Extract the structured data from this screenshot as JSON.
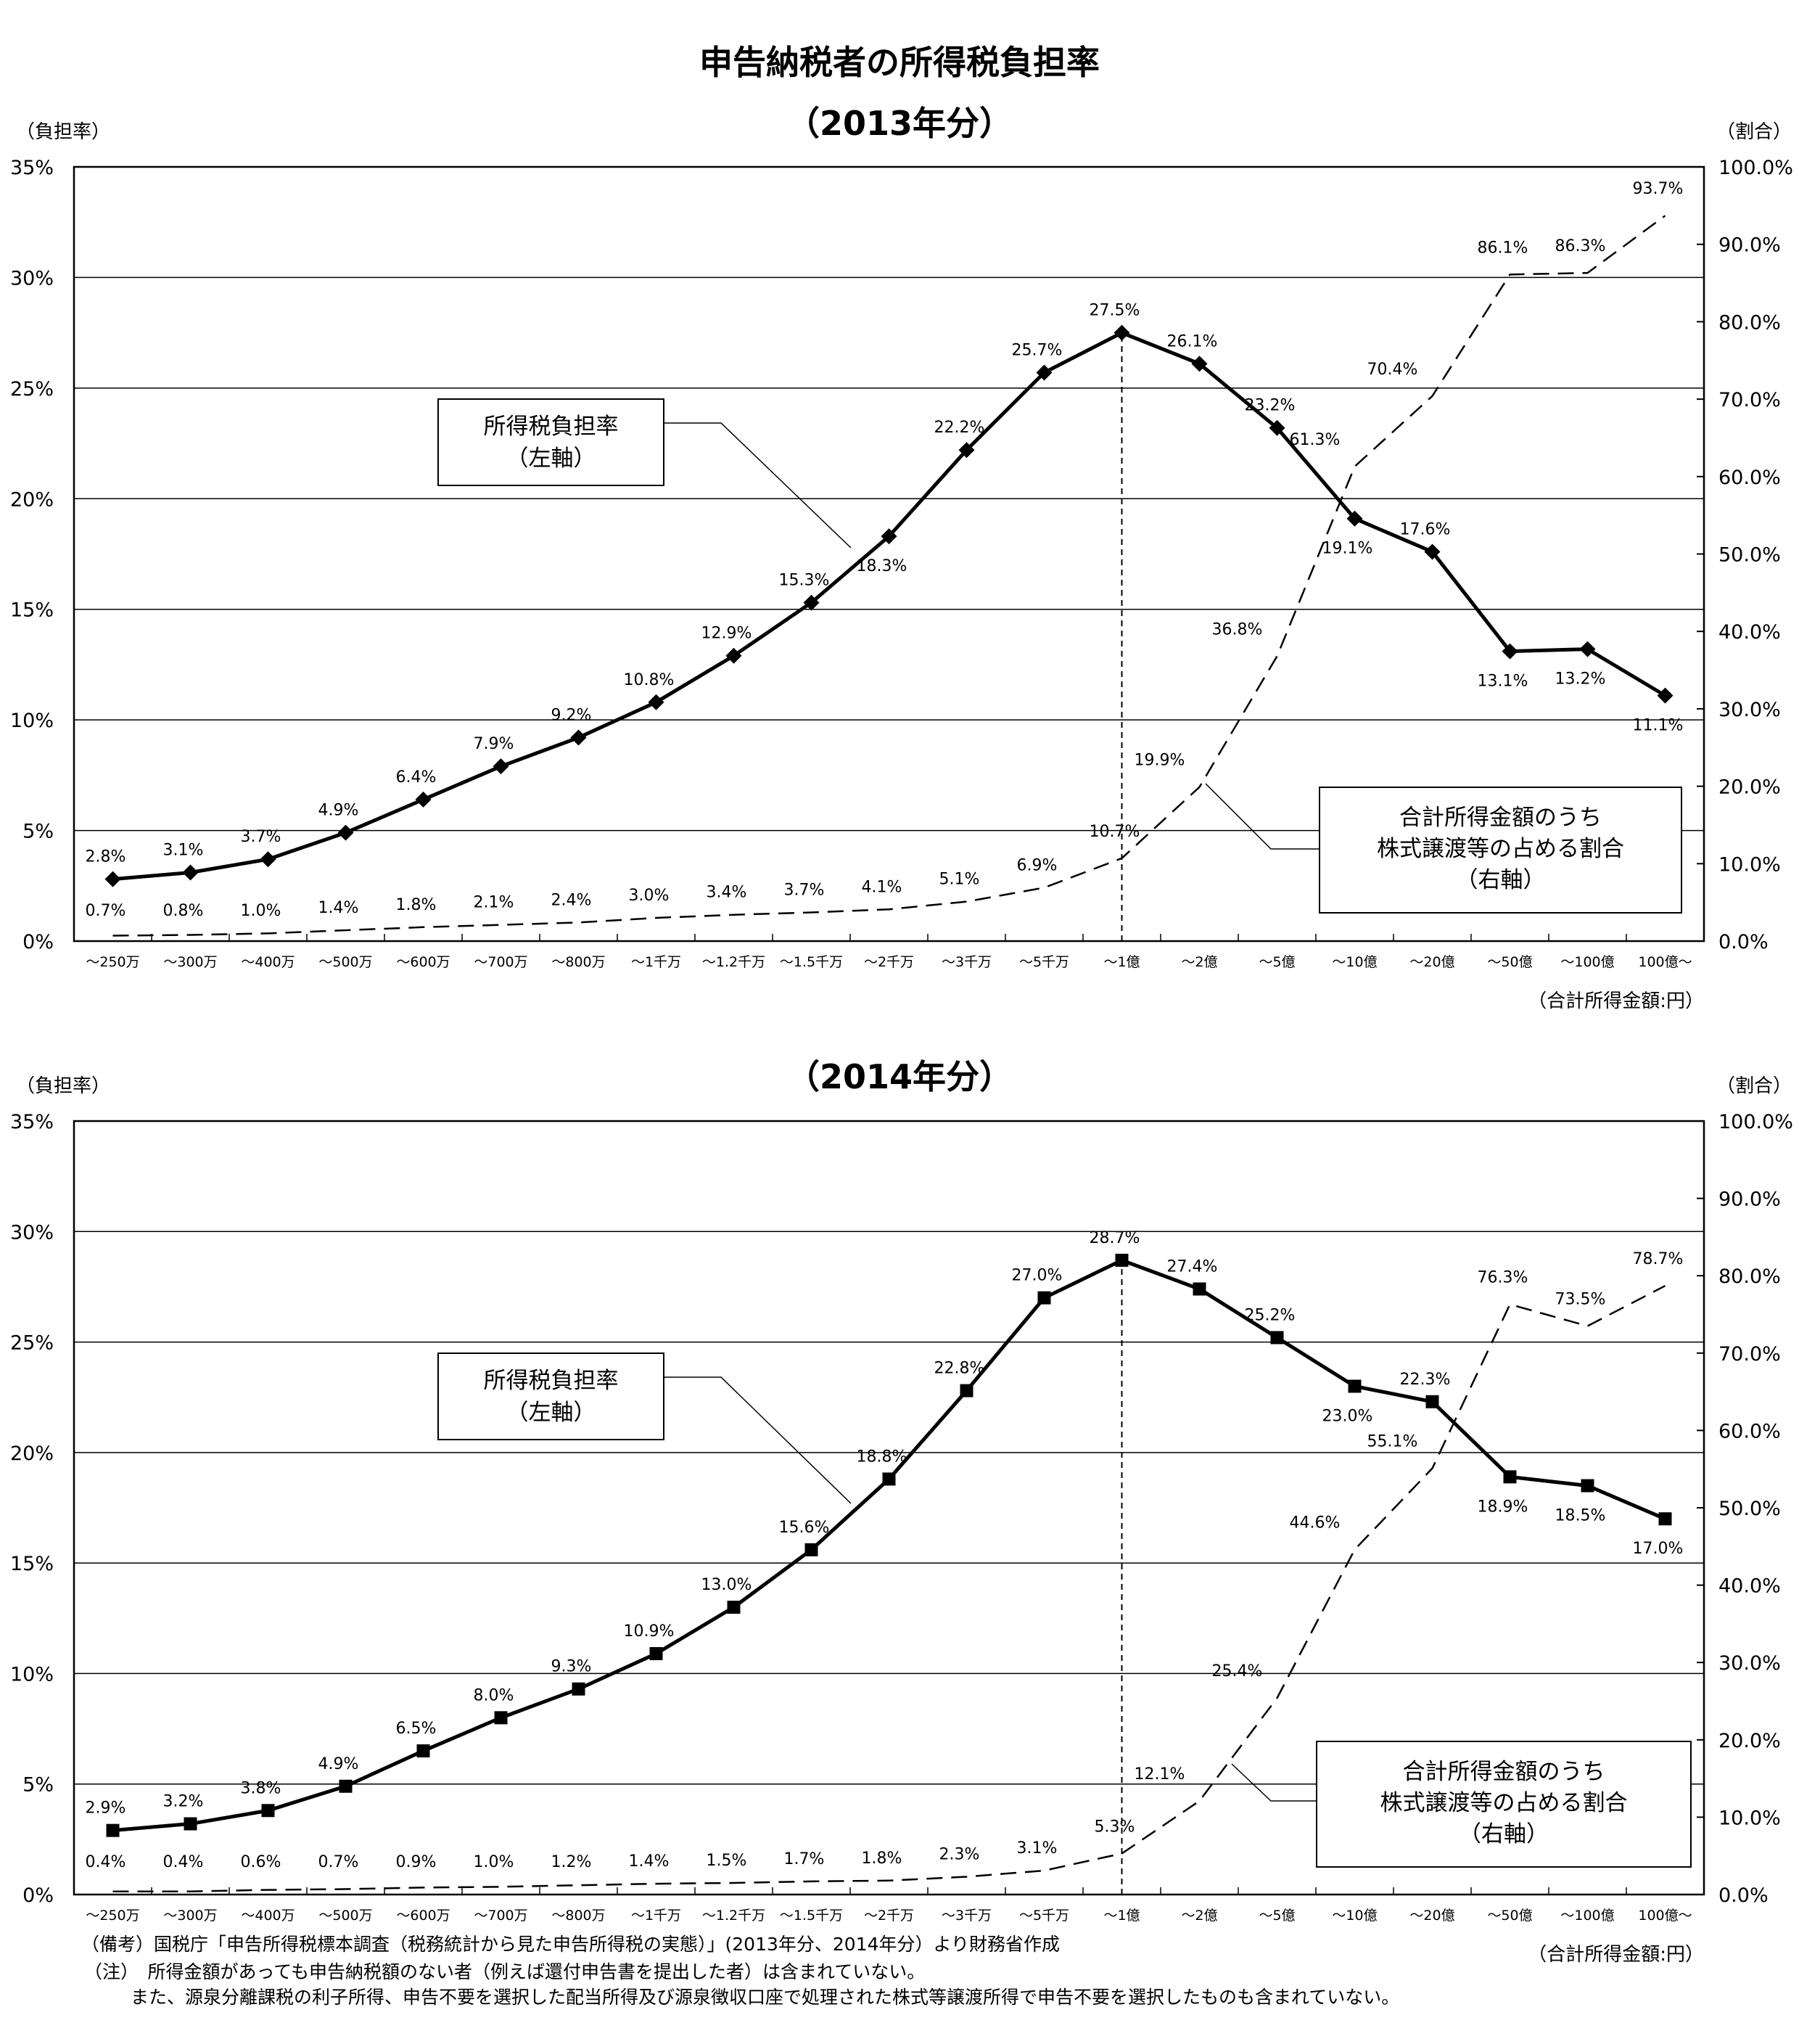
{
  "title": "申告納税者の所得税負担率",
  "x_unit_label": "（合計所得金額:円）",
  "left_axis_unit": "（負担率）",
  "right_axis_unit": "（割合）",
  "notes": {
    "source": "（備考）国税庁「申告所得税標本調査（税務統計から見た申告所得税の実態）」(2013年分、2014年分）より財務省作成",
    "note1": "（注）　所得金額があっても申告納税額のない者（例えば還付申告書を提出した者）は含まれていない。",
    "note2": "また、源泉分離課税の利子所得、申告不要を選択した配当所得及び源泉徴収口座で処理された株式等譲渡所得で申告不要を選択したものも含まれていない。"
  },
  "chart_data": [
    {
      "type": "line",
      "title": "（2013年分）",
      "categories": [
        "～250万",
        "～300万",
        "～400万",
        "～500万",
        "～600万",
        "～700万",
        "～800万",
        "～1千万",
        "～1.2千万",
        "～1.5千万",
        "～2千万",
        "～3千万",
        "～5千万",
        "～1億",
        "～2億",
        "～5億",
        "～10億",
        "～20億",
        "～50億",
        "～100億",
        "100億～"
      ],
      "y_left": {
        "range": [
          0,
          35
        ],
        "ticks": [
          "0%",
          "5%",
          "10%",
          "15%",
          "20%",
          "25%",
          "30%",
          "35%"
        ]
      },
      "y_right": {
        "range": [
          0,
          100
        ],
        "ticks": [
          "0.0%",
          "10.0%",
          "20.0%",
          "30.0%",
          "40.0%",
          "50.0%",
          "60.0%",
          "70.0%",
          "80.0%",
          "90.0%",
          "100.0%"
        ]
      },
      "grid": true,
      "marker": "diamond",
      "series": [
        {
          "name": "所得税負担率（左軸）",
          "axis": "left",
          "style": "solid",
          "values": [
            2.8,
            3.1,
            3.7,
            4.9,
            6.4,
            7.9,
            9.2,
            10.8,
            12.9,
            15.3,
            18.3,
            22.2,
            25.7,
            27.5,
            26.1,
            23.2,
            19.1,
            17.6,
            13.1,
            13.2,
            11.1
          ],
          "labels": [
            "2.8%",
            "3.1%",
            "3.7%",
            "4.9%",
            "6.4%",
            "7.9%",
            "9.2%",
            "10.8%",
            "12.9%",
            "15.3%",
            "18.3%",
            "22.2%",
            "25.7%",
            "27.5%",
            "26.1%",
            "23.2%",
            "19.1%",
            "17.6%",
            "13.1%",
            "13.2%",
            "11.1%"
          ]
        },
        {
          "name": "合計所得金額のうち株式譲渡等の占める割合（右軸）",
          "axis": "right",
          "style": "dashed",
          "values": [
            0.7,
            0.8,
            1.0,
            1.4,
            1.8,
            2.1,
            2.4,
            3.0,
            3.4,
            3.7,
            4.1,
            5.1,
            6.9,
            10.7,
            19.9,
            36.8,
            61.3,
            70.4,
            86.1,
            86.3,
            93.7
          ],
          "labels": [
            "0.7%",
            "0.8%",
            "1.0%",
            "1.4%",
            "1.8%",
            "2.1%",
            "2.4%",
            "3.0%",
            "3.4%",
            "3.7%",
            "4.1%",
            "5.1%",
            "6.9%",
            "10.7%",
            "19.9%",
            "36.8%",
            "61.3%",
            "70.4%",
            "86.1%",
            "86.3%",
            "93.7%"
          ]
        }
      ],
      "callouts": [
        {
          "line1": "所得税負担率",
          "line2": "（左軸）"
        },
        {
          "line1": "合計所得金額のうち",
          "line2": "株式譲渡等の占める割合",
          "line3": "（右軸）"
        }
      ],
      "reference_line_category": "～1億"
    },
    {
      "type": "line",
      "title": "（2014年分）",
      "categories": [
        "～250万",
        "～300万",
        "～400万",
        "～500万",
        "～600万",
        "～700万",
        "～800万",
        "～1千万",
        "～1.2千万",
        "～1.5千万",
        "～2千万",
        "～3千万",
        "～5千万",
        "～1億",
        "～2億",
        "～5億",
        "～10億",
        "～20億",
        "～50億",
        "～100億",
        "100億～"
      ],
      "y_left": {
        "range": [
          0,
          35
        ],
        "ticks": [
          "0%",
          "5%",
          "10%",
          "15%",
          "20%",
          "25%",
          "30%",
          "35%"
        ]
      },
      "y_right": {
        "range": [
          0,
          100
        ],
        "ticks": [
          "0.0%",
          "10.0%",
          "20.0%",
          "30.0%",
          "40.0%",
          "50.0%",
          "60.0%",
          "70.0%",
          "80.0%",
          "90.0%",
          "100.0%"
        ]
      },
      "grid": true,
      "marker": "square",
      "series": [
        {
          "name": "所得税負担率（左軸）",
          "axis": "left",
          "style": "solid",
          "values": [
            2.9,
            3.2,
            3.8,
            4.9,
            6.5,
            8.0,
            9.3,
            10.9,
            13.0,
            15.6,
            18.8,
            22.8,
            27.0,
            28.7,
            27.4,
            25.2,
            23.0,
            22.3,
            18.9,
            18.5,
            17.0
          ],
          "labels": [
            "2.9%",
            "3.2%",
            "3.8%",
            "4.9%",
            "6.5%",
            "8.0%",
            "9.3%",
            "10.9%",
            "13.0%",
            "15.6%",
            "18.8%",
            "22.8%",
            "27.0%",
            "28.7%",
            "27.4%",
            "25.2%",
            "23.0%",
            "22.3%",
            "18.9%",
            "18.5%",
            "17.0%"
          ]
        },
        {
          "name": "合計所得金額のうち株式譲渡等の占める割合（右軸）",
          "axis": "right",
          "style": "dashed",
          "values": [
            0.4,
            0.4,
            0.6,
            0.7,
            0.9,
            1.0,
            1.2,
            1.4,
            1.5,
            1.7,
            1.8,
            2.3,
            3.1,
            5.3,
            12.1,
            25.4,
            44.6,
            55.1,
            76.3,
            73.5,
            78.7
          ],
          "labels": [
            "0.4%",
            "0.4%",
            "0.6%",
            "0.7%",
            "0.9%",
            "1.0%",
            "1.2%",
            "1.4%",
            "1.5%",
            "1.7%",
            "1.8%",
            "2.3%",
            "3.1%",
            "5.3%",
            "12.1%",
            "25.4%",
            "44.6%",
            "55.1%",
            "76.3%",
            "73.5%",
            "78.7%"
          ]
        }
      ],
      "callouts": [
        {
          "line1": "所得税負担率",
          "line2": "（左軸）"
        },
        {
          "line1": "合計所得金額のうち",
          "line2": "株式譲渡等の占める割合",
          "line3": "（右軸）"
        }
      ],
      "reference_line_category": "～1億"
    }
  ]
}
